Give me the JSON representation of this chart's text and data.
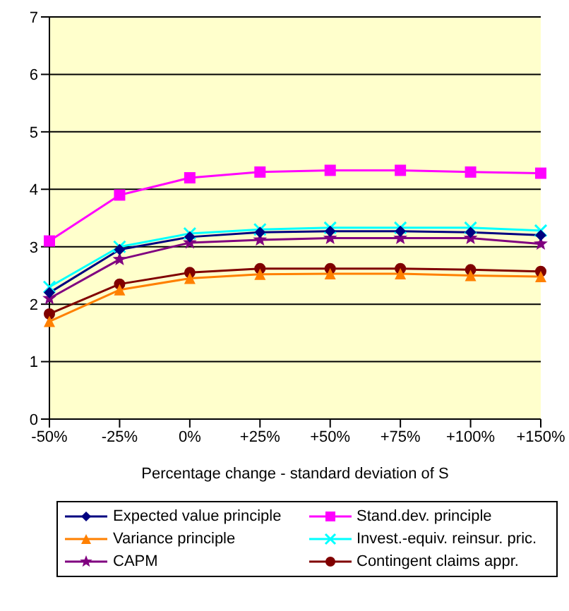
{
  "chart_data": {
    "type": "line",
    "xlabel": "Percentage change - standard deviation of S",
    "categories": [
      "-50%",
      "-25%",
      "0%",
      "+25%",
      "+50%",
      "+75%",
      "+100%",
      "+150%"
    ],
    "ylim": [
      0,
      7
    ],
    "yticks": [
      0,
      1,
      2,
      3,
      4,
      5,
      6,
      7
    ],
    "grid": "y",
    "legend": "bottom",
    "series": [
      {
        "name": "Expected value principle",
        "color": "#000080",
        "marker": "diamond",
        "values": [
          2.2,
          2.95,
          3.17,
          3.25,
          3.27,
          3.27,
          3.25,
          3.2
        ]
      },
      {
        "name": "Stand.dev. principle",
        "color": "#ff00ff",
        "marker": "square",
        "values": [
          3.1,
          3.9,
          4.2,
          4.3,
          4.33,
          4.33,
          4.3,
          4.28
        ]
      },
      {
        "name": "Variance principle",
        "color": "#ff8000",
        "marker": "triangle",
        "values": [
          1.7,
          2.25,
          2.45,
          2.52,
          2.53,
          2.53,
          2.5,
          2.48
        ]
      },
      {
        "name": "Invest.-equiv. reinsur. pric.",
        "color": "#00ffff",
        "marker": "cross",
        "values": [
          2.3,
          3.0,
          3.23,
          3.3,
          3.33,
          3.33,
          3.33,
          3.28
        ]
      },
      {
        "name": "CAPM",
        "color": "#800080",
        "marker": "star",
        "values": [
          2.1,
          2.78,
          3.07,
          3.12,
          3.15,
          3.15,
          3.15,
          3.05
        ]
      },
      {
        "name": "Contingent claims appr.",
        "color": "#800000",
        "marker": "circle",
        "values": [
          1.83,
          2.35,
          2.55,
          2.62,
          2.62,
          2.62,
          2.6,
          2.57
        ]
      }
    ]
  }
}
